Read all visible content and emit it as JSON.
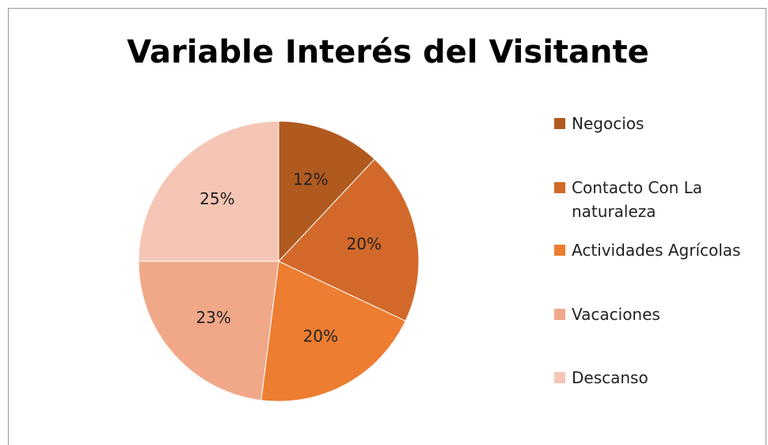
{
  "chart_data": {
    "type": "pie",
    "title": "Variable Interés del Visitante",
    "categories": [
      "Negocios",
      "Contacto Con La naturaleza",
      "Actividades Agrícolas",
      "Vacaciones",
      "Descanso"
    ],
    "values": [
      12,
      20,
      20,
      23,
      25
    ],
    "value_labels": [
      "12%",
      "20%",
      "20%",
      "23%",
      "25%"
    ],
    "colors": [
      "#b05a1f",
      "#d2692a",
      "#ed7d31",
      "#f0a889",
      "#f5c6b5"
    ],
    "legend": "right"
  }
}
